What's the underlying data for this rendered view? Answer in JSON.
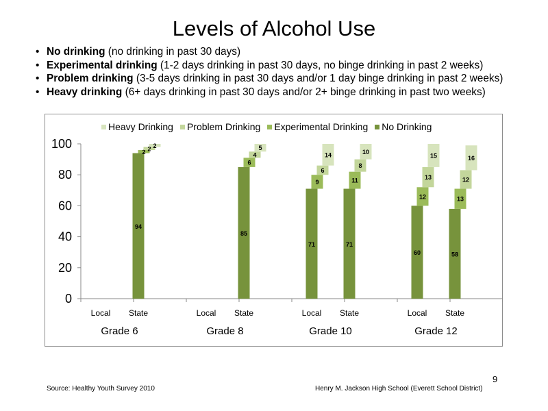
{
  "title": "Levels of Alcohol Use",
  "bullets": [
    {
      "term": "No drinking",
      "desc": "(no drinking in past 30 days)"
    },
    {
      "term": "Experimental  drinking",
      "desc": "(1-2 days drinking in past 30 days, no binge drinking in past 2 weeks)"
    },
    {
      "term": "Problem drinking",
      "desc": "(3-5 days drinking in past 30 days and/or 1 day binge drinking in past 2 weeks)"
    },
    {
      "term": "Heavy drinking",
      "desc": "(6+ days drinking in past 30 days and/or 2+ binge drinking in past two weeks)"
    }
  ],
  "chart_data": {
    "type": "bar",
    "subtype": "stacked-waterfall",
    "title": "",
    "xlabel": "",
    "ylabel": "",
    "ylim": [
      0,
      100
    ],
    "yticks": [
      "0",
      "20",
      "40",
      "60",
      "80",
      "100"
    ],
    "grid": false,
    "legend_position": "top",
    "groups": [
      "Grade 6",
      "Grade 8",
      "Grade 10",
      "Grade 12"
    ],
    "bar_labels": [
      "Local",
      "State"
    ],
    "legend": [
      "Heavy Drinking",
      "Problem Drinking",
      "Experimental Drinking",
      "No Drinking"
    ],
    "series": [
      {
        "name": "No Drinking",
        "color": "#77933c",
        "values": [
          null,
          94,
          null,
          85,
          71,
          71,
          60,
          58
        ]
      },
      {
        "name": "Experimental Drinking",
        "color": "#9bbb59",
        "values": [
          null,
          2,
          null,
          6,
          9,
          11,
          12,
          13
        ]
      },
      {
        "name": "Problem Drinking",
        "color": "#c3d69b",
        "values": [
          null,
          2,
          null,
          4,
          6,
          8,
          13,
          12
        ]
      },
      {
        "name": "Heavy Drinking",
        "color": "#d7e4bd",
        "values": [
          null,
          2,
          null,
          5,
          14,
          10,
          15,
          16
        ]
      }
    ]
  },
  "footer": {
    "source": "Source: Healthy Youth Survey 2010",
    "school": "Henry M. Jackson High School (Everett School District)",
    "page": "9"
  }
}
